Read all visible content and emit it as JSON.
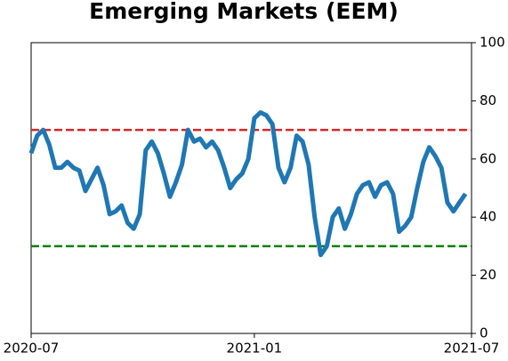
{
  "chart_data": {
    "type": "line",
    "title": "Emerging Markets (EEM)",
    "categories": [
      "2020-07",
      null,
      null,
      null,
      null,
      null,
      null,
      null,
      null,
      null,
      null,
      null,
      null,
      null,
      null,
      null,
      null,
      null,
      null,
      null,
      null,
      null,
      null,
      null,
      null,
      null,
      null,
      null,
      null,
      null,
      null,
      null,
      null,
      null,
      null,
      null,
      null,
      "2021-01",
      null,
      null,
      null,
      null,
      null,
      null,
      null,
      null,
      null,
      null,
      null,
      null,
      null,
      null,
      null,
      null,
      null,
      null,
      null,
      null,
      null,
      null,
      null,
      null,
      null,
      null,
      null,
      null,
      null,
      null,
      null,
      null,
      null,
      null,
      null,
      "2021-07"
    ],
    "values": [
      62,
      68,
      70,
      65,
      57,
      57,
      59,
      57,
      56,
      49,
      53,
      57,
      51,
      41,
      42,
      44,
      38,
      36,
      41,
      63,
      66,
      62,
      55,
      47,
      52,
      58,
      70,
      66,
      67,
      64,
      66,
      63,
      57,
      50,
      53,
      55,
      60,
      74,
      76,
      75,
      72,
      57,
      52,
      57,
      68,
      66,
      58,
      40,
      27,
      30,
      40,
      43,
      36,
      41,
      48,
      51,
      52,
      47,
      51,
      52,
      48,
      35,
      37,
      40,
      50,
      59,
      64,
      61,
      57,
      45,
      42,
      45,
      48,
      null
    ],
    "color": "#1f77b4",
    "ylim": [
      0,
      100
    ],
    "yticks": [
      0,
      20,
      40,
      60,
      80,
      100
    ],
    "hlines": [
      {
        "value": 70,
        "color": "#d62728"
      },
      {
        "value": 30,
        "color": "#008000"
      }
    ]
  }
}
